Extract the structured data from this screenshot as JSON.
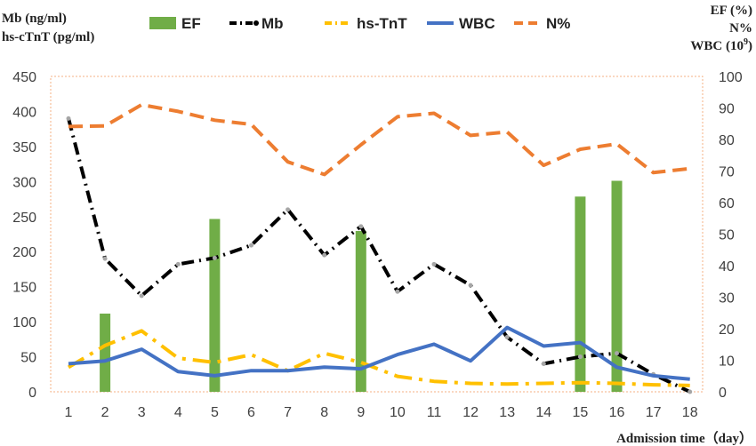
{
  "chart_data": {
    "type": "bar+line",
    "x": [
      1,
      2,
      3,
      4,
      5,
      6,
      7,
      8,
      9,
      10,
      11,
      12,
      13,
      14,
      15,
      16,
      17,
      18
    ],
    "xlabel": "Admission time（day）",
    "ylabel_left": [
      "Mb (ng/ml)",
      "hs-cTnT (pg/ml)"
    ],
    "ylabel_right": [
      "EF (%)",
      "N%",
      "WBC (10",
      "9",
      ")"
    ],
    "ylim_left": [
      0,
      450
    ],
    "ylim_right": [
      0,
      100
    ],
    "yticks_left": [
      "0",
      "50",
      "100",
      "150",
      "200",
      "250",
      "300",
      "350",
      "400",
      "450"
    ],
    "yticks_right": [
      "0",
      "10",
      "20",
      "30",
      "40",
      "50",
      "60",
      "70",
      "80",
      "90",
      "100"
    ],
    "legend_position": "top",
    "grid": false,
    "series": [
      {
        "name": "EF",
        "kind": "bar",
        "axis": "right",
        "color": "#70ad47",
        "points": [
          [
            2,
            24.8
          ],
          [
            5,
            54.8
          ],
          [
            9,
            51.0
          ],
          [
            15,
            61.9
          ],
          [
            16,
            66.9
          ]
        ]
      },
      {
        "name": "Mb",
        "kind": "line",
        "style": "dash-dot-black",
        "axis": "left",
        "color": "#000000",
        "values": [
          390,
          190,
          137,
          182,
          191,
          209,
          260,
          195,
          236,
          143,
          182,
          152,
          78,
          40,
          50,
          55,
          25,
          0
        ]
      },
      {
        "name": "hs-TnT",
        "kind": "line",
        "style": "dash-dot",
        "axis": "left",
        "color": "#ffc000",
        "values": [
          35,
          66,
          87,
          48,
          42,
          53,
          30,
          55,
          42,
          22,
          15,
          12,
          11,
          12,
          13,
          12,
          10,
          9
        ]
      },
      {
        "name": "WBC",
        "kind": "line",
        "style": "solid",
        "axis": "right",
        "color": "#4472c4",
        "values": [
          8.9,
          9.8,
          13.5,
          6.4,
          5.1,
          6.7,
          6.7,
          7.8,
          7.3,
          11.8,
          15.1,
          9.8,
          20.4,
          14.5,
          15.6,
          7.8,
          5.1,
          4.0
        ]
      },
      {
        "name": "N%",
        "kind": "line",
        "style": "dashed",
        "axis": "right",
        "color": "#ed7d31",
        "values": [
          84.1,
          84.3,
          91.0,
          88.9,
          86.1,
          84.8,
          72.9,
          68.9,
          78.3,
          87.2,
          88.3,
          81.3,
          82.4,
          71.8,
          76.9,
          78.6,
          69.5,
          70.8
        ]
      }
    ]
  }
}
